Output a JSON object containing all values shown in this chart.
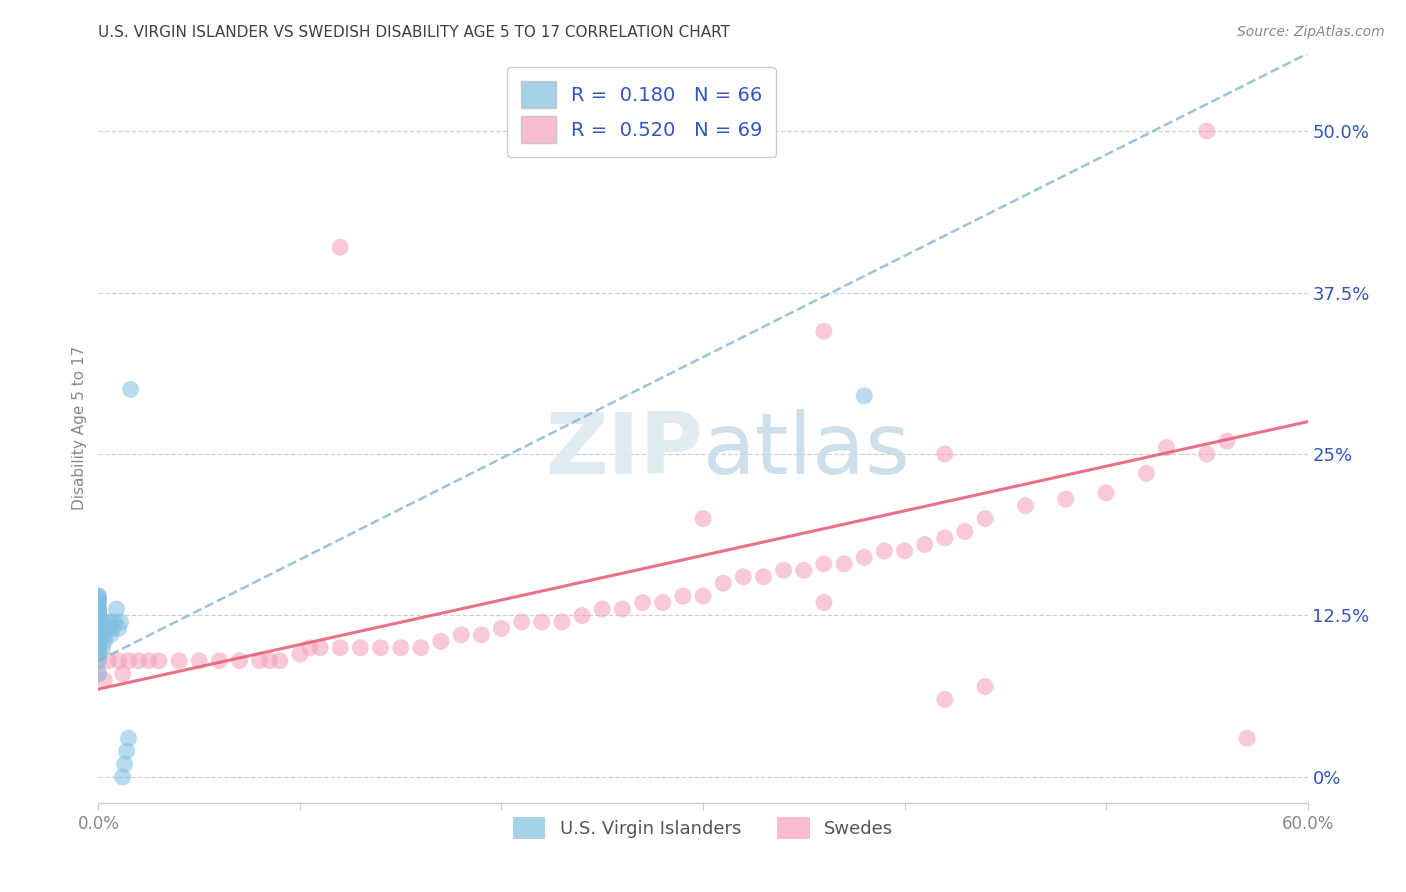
{
  "title": "U.S. VIRGIN ISLANDER VS SWEDISH DISABILITY AGE 5 TO 17 CORRELATION CHART",
  "source": "Source: ZipAtlas.com",
  "ylabel": "Disability Age 5 to 17",
  "xlim": [
    0.0,
    0.6
  ],
  "ylim": [
    -0.02,
    0.56
  ],
  "xticks": [
    0.0,
    0.1,
    0.2,
    0.3,
    0.4,
    0.5,
    0.6
  ],
  "xtick_labels": [
    "0.0%",
    "",
    "",
    "",
    "",
    "",
    "60.0%"
  ],
  "yticks_right": [
    0.0,
    0.125,
    0.25,
    0.375,
    0.5
  ],
  "ytick_labels_right": [
    "0%",
    "12.5%",
    "25%",
    "37.5%",
    "50.0%"
  ],
  "blue_R": 0.18,
  "blue_N": 66,
  "pink_R": 0.52,
  "pink_N": 69,
  "blue_color": "#7fbfdf",
  "pink_color": "#f4a0b8",
  "blue_line_color": "#7ab0d0",
  "pink_line_color": "#e8607a",
  "grid_color": "#d0d0d0",
  "title_color": "#404040",
  "legend_text_color": "#3355bb",
  "axis_label_color": "#888888",
  "right_tick_color": "#3355bb",
  "background_color": "#ffffff",
  "blue_line_x0": 0.0,
  "blue_line_y0": 0.09,
  "blue_line_x1": 0.6,
  "blue_line_y1": 0.56,
  "pink_line_x0": 0.0,
  "pink_line_y0": 0.068,
  "pink_line_x1": 0.6,
  "pink_line_y1": 0.275,
  "blue_dots_x": [
    0.0,
    0.0,
    0.0,
    0.0,
    0.0,
    0.0,
    0.0,
    0.0,
    0.0,
    0.0,
    0.0,
    0.0,
    0.0,
    0.0,
    0.0,
    0.0,
    0.0,
    0.0,
    0.0,
    0.0,
    0.0,
    0.0,
    0.0,
    0.0,
    0.0,
    0.0,
    0.0,
    0.0,
    0.0,
    0.0,
    0.0,
    0.0,
    0.0,
    0.0,
    0.0,
    0.0,
    0.0,
    0.0,
    0.0,
    0.0,
    0.0,
    0.0,
    0.0,
    0.0,
    0.0,
    0.0,
    0.0,
    0.002,
    0.003,
    0.003,
    0.004,
    0.005,
    0.005,
    0.006,
    0.006,
    0.007,
    0.008,
    0.009,
    0.01,
    0.011,
    0.012,
    0.013,
    0.014,
    0.015,
    0.016,
    0.38
  ],
  "blue_dots_y": [
    0.08,
    0.09,
    0.095,
    0.1,
    0.1,
    0.1,
    0.1,
    0.1,
    0.1,
    0.1,
    0.105,
    0.105,
    0.105,
    0.108,
    0.108,
    0.11,
    0.11,
    0.11,
    0.11,
    0.11,
    0.112,
    0.113,
    0.115,
    0.115,
    0.116,
    0.117,
    0.118,
    0.118,
    0.12,
    0.12,
    0.12,
    0.12,
    0.121,
    0.122,
    0.123,
    0.125,
    0.125,
    0.126,
    0.128,
    0.13,
    0.13,
    0.13,
    0.135,
    0.135,
    0.138,
    0.14,
    0.14,
    0.1,
    0.105,
    0.11,
    0.115,
    0.115,
    0.12,
    0.11,
    0.12,
    0.115,
    0.12,
    0.13,
    0.115,
    0.12,
    0.0,
    0.01,
    0.02,
    0.03,
    0.3,
    0.295
  ],
  "pink_dots_x": [
    0.0,
    0.0,
    0.003,
    0.005,
    0.01,
    0.012,
    0.015,
    0.02,
    0.025,
    0.03,
    0.04,
    0.05,
    0.06,
    0.07,
    0.08,
    0.085,
    0.09,
    0.1,
    0.105,
    0.11,
    0.12,
    0.13,
    0.14,
    0.15,
    0.16,
    0.17,
    0.18,
    0.19,
    0.2,
    0.21,
    0.22,
    0.23,
    0.24,
    0.25,
    0.26,
    0.27,
    0.28,
    0.29,
    0.3,
    0.31,
    0.32,
    0.33,
    0.34,
    0.35,
    0.36,
    0.37,
    0.38,
    0.39,
    0.4,
    0.41,
    0.42,
    0.43,
    0.44,
    0.46,
    0.48,
    0.5,
    0.52,
    0.55,
    0.56,
    0.57,
    0.12,
    0.3,
    0.36,
    0.42,
    0.55,
    0.53,
    0.36,
    0.44,
    0.42
  ],
  "pink_dots_y": [
    0.08,
    0.09,
    0.075,
    0.09,
    0.09,
    0.08,
    0.09,
    0.09,
    0.09,
    0.09,
    0.09,
    0.09,
    0.09,
    0.09,
    0.09,
    0.09,
    0.09,
    0.095,
    0.1,
    0.1,
    0.1,
    0.1,
    0.1,
    0.1,
    0.1,
    0.105,
    0.11,
    0.11,
    0.115,
    0.12,
    0.12,
    0.12,
    0.125,
    0.13,
    0.13,
    0.135,
    0.135,
    0.14,
    0.14,
    0.15,
    0.155,
    0.155,
    0.16,
    0.16,
    0.165,
    0.165,
    0.17,
    0.175,
    0.175,
    0.18,
    0.185,
    0.19,
    0.2,
    0.21,
    0.215,
    0.22,
    0.235,
    0.25,
    0.26,
    0.03,
    0.41,
    0.2,
    0.135,
    0.25,
    0.5,
    0.255,
    0.345,
    0.07,
    0.06
  ]
}
